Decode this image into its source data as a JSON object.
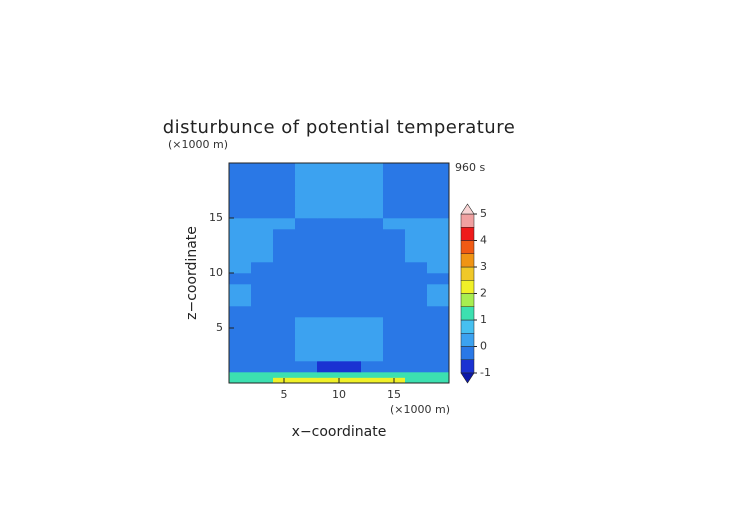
{
  "chart_data": {
    "type": "contour",
    "title": "disturbunce of potential temperature",
    "time_label": "960 s",
    "xlabel": "x−coordinate",
    "ylabel": "z−coordinate",
    "xunit": "(×1000 m)",
    "yunit": "(×1000 m)",
    "xlim": [
      0,
      20
    ],
    "ylim": [
      0,
      20
    ],
    "xticks": [
      5,
      10,
      15
    ],
    "yticks": [
      5,
      10,
      15
    ],
    "x_edges": [
      0,
      2,
      4,
      6,
      8,
      10,
      12,
      14,
      16,
      18,
      20
    ],
    "y_edges": [
      0,
      0.5,
      1,
      2,
      3,
      4,
      5,
      6,
      7,
      8,
      9,
      10,
      11,
      12,
      13,
      14,
      15,
      16,
      17,
      18,
      19,
      20
    ],
    "values": [
      [
        1.2,
        1.2,
        2.1,
        2.1,
        2.1,
        2.1,
        2.1,
        2.1,
        1.2,
        1.2
      ],
      [
        1.1,
        1.1,
        1.1,
        1.1,
        1.1,
        1.1,
        1.1,
        1.1,
        1.1,
        1.1
      ],
      [
        -0.2,
        -0.2,
        -0.2,
        -0.2,
        -0.6,
        -0.6,
        -0.2,
        -0.2,
        -0.2,
        -0.2
      ],
      [
        -0.2,
        -0.2,
        -0.2,
        0.2,
        0.2,
        0.2,
        0.2,
        -0.2,
        -0.2,
        -0.2
      ],
      [
        -0.2,
        -0.2,
        -0.2,
        0.2,
        0.2,
        0.2,
        0.2,
        -0.2,
        -0.2,
        -0.2
      ],
      [
        -0.2,
        -0.2,
        -0.2,
        0.2,
        0.2,
        0.2,
        0.2,
        -0.2,
        -0.2,
        -0.2
      ],
      [
        -0.2,
        -0.2,
        -0.2,
        0.2,
        0.2,
        0.2,
        0.2,
        -0.2,
        -0.2,
        -0.2
      ],
      [
        -0.2,
        -0.2,
        -0.2,
        -0.2,
        -0.2,
        -0.2,
        -0.2,
        -0.2,
        -0.2,
        -0.2
      ],
      [
        0.2,
        -0.2,
        -0.2,
        -0.2,
        -0.2,
        -0.2,
        -0.2,
        -0.2,
        -0.2,
        0.2
      ],
      [
        0.2,
        -0.2,
        -0.2,
        -0.2,
        -0.2,
        -0.2,
        -0.2,
        -0.2,
        -0.2,
        0.2
      ],
      [
        -0.2,
        -0.2,
        -0.2,
        -0.2,
        -0.2,
        -0.2,
        -0.2,
        -0.2,
        -0.2,
        -0.2
      ],
      [
        0.2,
        -0.2,
        -0.2,
        -0.2,
        -0.2,
        -0.2,
        -0.2,
        -0.2,
        -0.2,
        0.2
      ],
      [
        0.2,
        0.2,
        -0.2,
        -0.2,
        -0.2,
        -0.2,
        -0.2,
        -0.2,
        0.2,
        0.2
      ],
      [
        0.2,
        0.2,
        -0.2,
        -0.2,
        -0.2,
        -0.2,
        -0.2,
        -0.2,
        0.2,
        0.2
      ],
      [
        0.2,
        0.2,
        -0.2,
        -0.2,
        -0.2,
        -0.2,
        -0.2,
        -0.2,
        0.2,
        0.2
      ],
      [
        0.2,
        0.2,
        0.2,
        -0.2,
        -0.2,
        -0.2,
        -0.2,
        0.2,
        0.2,
        0.2
      ],
      [
        -0.2,
        -0.2,
        -0.2,
        0.2,
        0.2,
        0.2,
        0.2,
        -0.2,
        -0.2,
        -0.2
      ],
      [
        -0.2,
        -0.2,
        -0.2,
        0.2,
        0.2,
        0.2,
        0.2,
        -0.2,
        -0.2,
        -0.2
      ],
      [
        -0.2,
        -0.2,
        -0.2,
        0.2,
        0.2,
        0.2,
        0.2,
        -0.2,
        -0.2,
        -0.2
      ],
      [
        -0.2,
        -0.2,
        -0.2,
        0.2,
        0.2,
        0.2,
        0.2,
        -0.2,
        -0.2,
        -0.2
      ],
      [
        -0.2,
        -0.2,
        -0.2,
        0.2,
        0.2,
        0.2,
        0.2,
        -0.2,
        -0.2,
        -0.2
      ]
    ],
    "levels": [
      -1,
      -0.5,
      0,
      0.5,
      1,
      1.5,
      2,
      2.5,
      3,
      3.5,
      4,
      4.5,
      5
    ],
    "colors": [
      "#1a32d2",
      "#2a78e6",
      "#3ca2f0",
      "#46c0f0",
      "#3ce0b0",
      "#a8ee50",
      "#f0f028",
      "#f0c828",
      "#f09414",
      "#f05a14",
      "#ee1a1a",
      "#f0a0a0"
    ],
    "under_color": "#0c18a8",
    "over_color": "#f8d4d4",
    "colorbar_ticks": [
      -1,
      0,
      1,
      2,
      3,
      4,
      5
    ]
  }
}
